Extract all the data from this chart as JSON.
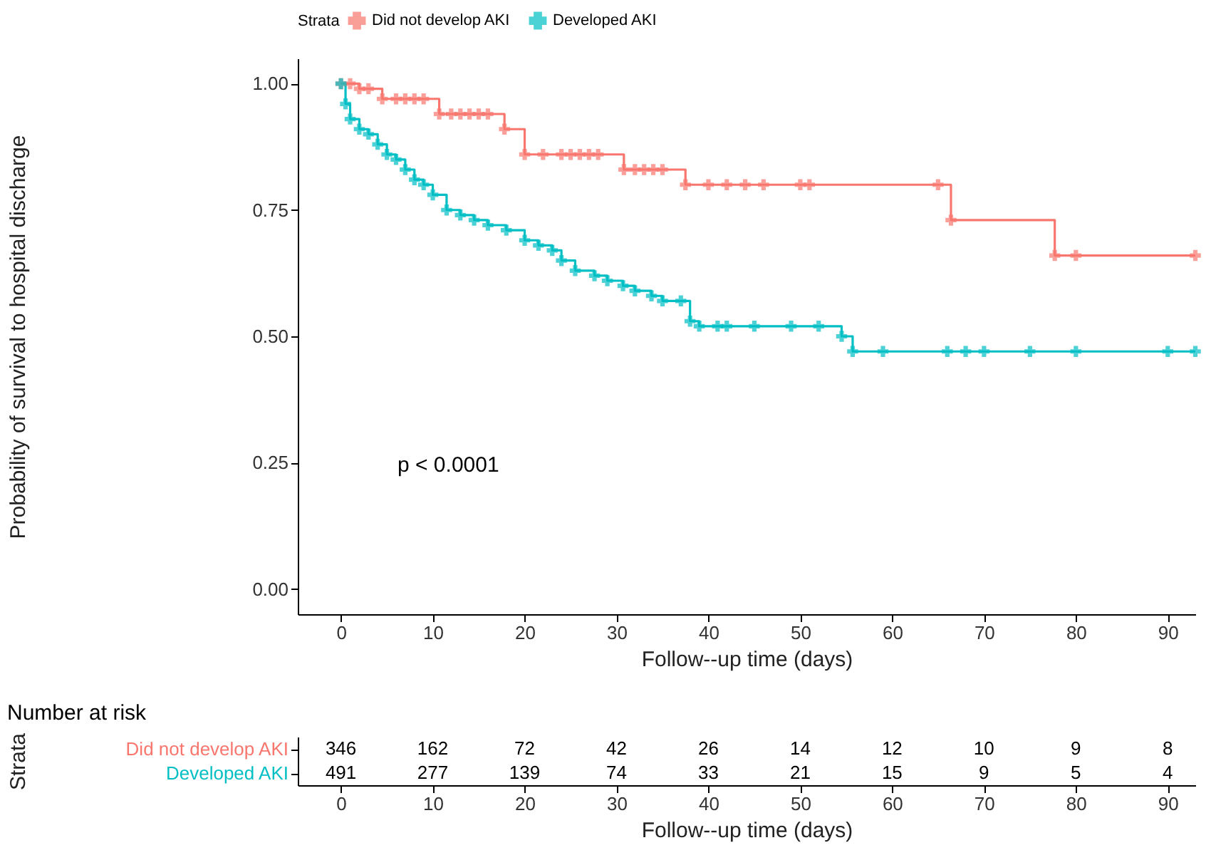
{
  "chart_data": [
    {
      "type": "step",
      "xlabel": "Follow--up time (days)",
      "ylabel": "Probability of survival to hospital discharge",
      "legend_title": "Strata",
      "legend": "top",
      "marker": "cross",
      "line_style": "solid",
      "annotations": [
        "p < 0.0001"
      ],
      "xlim": [
        -4.7,
        93
      ],
      "ylim": [
        -0.05,
        1.05
      ],
      "xticks": [
        0,
        10,
        20,
        30,
        40,
        50,
        60,
        70,
        80,
        90
      ],
      "yticks": [
        {
          "value": 0,
          "label": "0.00"
        },
        0.25,
        {
          "value": 0.5,
          "label": "0.50"
        },
        0.75,
        {
          "value": 1,
          "label": "1.00"
        }
      ],
      "series": [
        {
          "name": "Did not develop AKI",
          "color": "#f8766d",
          "x": [
            0,
            1,
            2,
            3,
            4.5,
            6,
            7,
            8,
            9,
            10.7,
            12,
            13,
            14,
            15,
            16,
            17.8,
            20,
            22,
            24,
            25,
            26,
            27,
            28,
            30.8,
            32,
            33,
            34,
            35,
            37.5,
            40,
            42,
            44,
            46,
            50,
            51,
            65,
            66.4,
            77.7,
            80,
            93
          ],
          "values": [
            1.0,
            1.0,
            0.99,
            0.99,
            0.97,
            0.97,
            0.97,
            0.97,
            0.97,
            0.94,
            0.94,
            0.94,
            0.94,
            0.94,
            0.94,
            0.91,
            0.86,
            0.86,
            0.86,
            0.86,
            0.86,
            0.86,
            0.86,
            0.83,
            0.83,
            0.83,
            0.83,
            0.83,
            0.8,
            0.8,
            0.8,
            0.8,
            0.8,
            0.8,
            0.8,
            0.8,
            0.73,
            0.66,
            0.66,
            0.66
          ]
        },
        {
          "name": "Developed AKI",
          "color": "#00bfc4",
          "x": [
            0,
            0.5,
            1,
            2,
            3,
            4,
            5,
            6,
            7,
            8,
            9,
            10,
            11.5,
            13,
            14.5,
            16,
            18,
            20,
            21.5,
            23,
            24,
            25.5,
            27.6,
            29,
            30.7,
            32,
            33.8,
            35,
            37,
            38,
            39,
            41,
            42,
            45,
            49,
            52,
            54.5,
            55.7,
            59,
            66,
            68,
            70,
            75,
            80,
            90,
            93
          ],
          "values": [
            1.0,
            0.96,
            0.93,
            0.91,
            0.9,
            0.88,
            0.86,
            0.85,
            0.83,
            0.81,
            0.8,
            0.78,
            0.75,
            0.74,
            0.73,
            0.72,
            0.71,
            0.69,
            0.68,
            0.67,
            0.65,
            0.63,
            0.62,
            0.61,
            0.6,
            0.59,
            0.58,
            0.57,
            0.57,
            0.53,
            0.52,
            0.52,
            0.52,
            0.52,
            0.52,
            0.52,
            0.5,
            0.47,
            0.47,
            0.47,
            0.47,
            0.47,
            0.47,
            0.47,
            0.47,
            0.47
          ]
        }
      ]
    },
    {
      "type": "heatmap",
      "data_labels": true,
      "title": "Number at risk",
      "xlabel": "Follow--up time (days)",
      "ylabel": "Strata",
      "categories": [
        "0",
        "10",
        "20",
        "30",
        "40",
        "50",
        "60",
        "70",
        "80",
        "90"
      ],
      "y_categories": [
        "Did not develop AKI",
        "Developed AKI"
      ],
      "cells": [
        [
          346,
          162,
          72,
          42,
          26,
          14,
          12,
          10,
          9,
          8
        ],
        [
          491,
          277,
          139,
          74,
          33,
          21,
          15,
          9,
          5,
          4
        ]
      ]
    }
  ]
}
